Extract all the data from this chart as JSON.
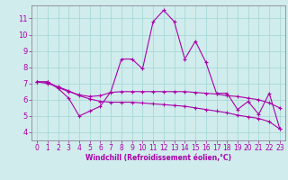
{
  "xlabel": "Windchill (Refroidissement éolien,°C)",
  "x": [
    0,
    1,
    2,
    3,
    4,
    5,
    6,
    7,
    8,
    9,
    10,
    11,
    12,
    13,
    14,
    15,
    16,
    17,
    18,
    19,
    20,
    21,
    22,
    23
  ],
  "line1": [
    7.1,
    7.1,
    6.7,
    6.1,
    5.0,
    5.3,
    5.6,
    6.5,
    8.5,
    8.5,
    7.9,
    10.8,
    11.5,
    10.8,
    8.5,
    9.6,
    8.3,
    6.4,
    6.4,
    5.4,
    5.9,
    5.1,
    6.4,
    4.2
  ],
  "line2": [
    7.1,
    7.1,
    6.75,
    6.5,
    6.3,
    6.2,
    6.25,
    6.45,
    6.5,
    6.5,
    6.5,
    6.5,
    6.5,
    6.5,
    6.5,
    6.45,
    6.4,
    6.35,
    6.25,
    6.2,
    6.1,
    6.0,
    5.8,
    5.5
  ],
  "line3": [
    7.1,
    7.0,
    6.8,
    6.55,
    6.25,
    6.05,
    5.9,
    5.85,
    5.85,
    5.85,
    5.8,
    5.75,
    5.7,
    5.65,
    5.6,
    5.5,
    5.4,
    5.3,
    5.2,
    5.05,
    4.95,
    4.85,
    4.65,
    4.2
  ],
  "line_color": "#aa00aa",
  "bg_color": "#d0ecec",
  "grid_color": "#a8d8d8",
  "ylim": [
    3.5,
    11.8
  ],
  "xlim": [
    -0.5,
    23.5
  ],
  "yticks": [
    4,
    5,
    6,
    7,
    8,
    9,
    10,
    11
  ],
  "xticks": [
    0,
    1,
    2,
    3,
    4,
    5,
    6,
    7,
    8,
    9,
    10,
    11,
    12,
    13,
    14,
    15,
    16,
    17,
    18,
    19,
    20,
    21,
    22,
    23
  ],
  "tick_fontsize": 5.5,
  "xlabel_fontsize": 5.5
}
